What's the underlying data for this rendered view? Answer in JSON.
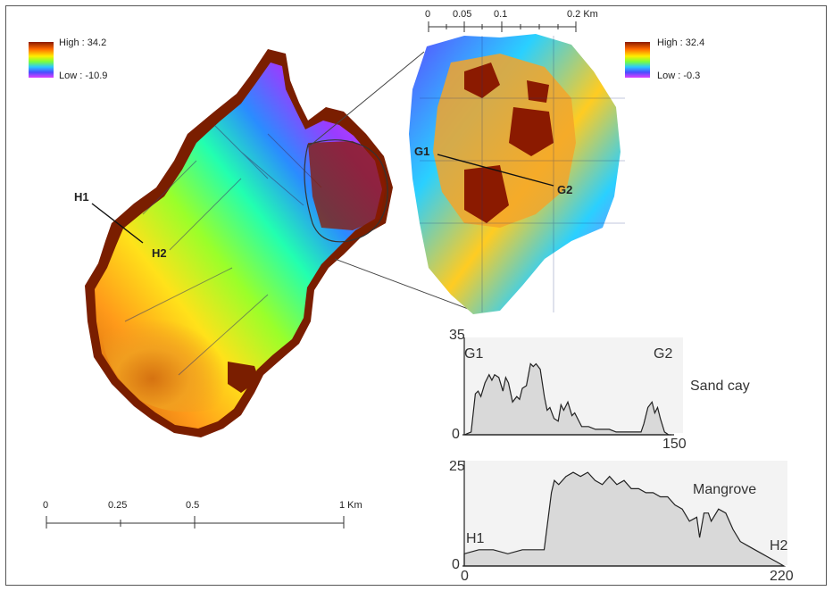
{
  "legend_left": {
    "high": "High : 34.2",
    "low": "Low : -10.9"
  },
  "legend_right": {
    "high": "High : 32.4",
    "low": "Low : -0.3"
  },
  "scalebar_top": {
    "ticks": [
      "0",
      "0.05",
      "0.1",
      "0.2 Km"
    ]
  },
  "scalebar_bottom": {
    "ticks": [
      "0",
      "0.25",
      "0.5",
      "1 Km"
    ]
  },
  "profile_points": {
    "h1": "H1",
    "h2": "H2",
    "g1": "G1",
    "g2": "G2"
  },
  "colors": {
    "ramp_high": "#8b1a00",
    "ramp_mid": "#7cff3a",
    "ramp_low": "#e040ff",
    "profile_fill": "#d9d9d9"
  },
  "chart_data": [
    {
      "type": "area",
      "title": "Sand cay",
      "x_ticks": [
        "0",
        "150"
      ],
      "y_ticks": [
        "0",
        "35"
      ],
      "start_label": "G1",
      "end_label": "G2",
      "xlim": [
        0,
        150
      ],
      "ylim": [
        0,
        35
      ],
      "x": [
        0,
        5,
        8,
        10,
        12,
        15,
        18,
        20,
        22,
        25,
        28,
        30,
        32,
        35,
        38,
        40,
        42,
        45,
        48,
        50,
        52,
        55,
        58,
        60,
        62,
        65,
        68,
        70,
        72,
        75,
        78,
        80,
        85,
        90,
        95,
        100,
        105,
        110,
        115,
        120,
        125,
        128,
        130,
        133,
        136,
        138,
        140,
        142,
        145,
        148,
        150
      ],
      "y": [
        0,
        1,
        15,
        16,
        14,
        19,
        22,
        20,
        22,
        21,
        16,
        21,
        19,
        12,
        14,
        13,
        17,
        18,
        26,
        25,
        26,
        24,
        14,
        9,
        10,
        6,
        5,
        11,
        9,
        12,
        7,
        8,
        3,
        3,
        2,
        2,
        2,
        1,
        1,
        1,
        1,
        1,
        4,
        10,
        12,
        8,
        10,
        6,
        1,
        0,
        0
      ]
    },
    {
      "type": "area",
      "title": "Mangrove",
      "x_ticks": [
        "0",
        "220"
      ],
      "y_ticks": [
        "0",
        "25"
      ],
      "start_label": "H1",
      "end_label": "H2",
      "xlim": [
        0,
        220
      ],
      "ylim": [
        0,
        25
      ],
      "x": [
        0,
        10,
        20,
        30,
        40,
        50,
        55,
        60,
        62,
        65,
        70,
        75,
        80,
        85,
        90,
        95,
        100,
        105,
        110,
        115,
        120,
        125,
        130,
        135,
        140,
        145,
        150,
        155,
        160,
        162,
        165,
        168,
        170,
        175,
        180,
        185,
        190,
        195,
        200,
        205,
        210,
        215,
        220
      ],
      "y": [
        3,
        4,
        4,
        3,
        4,
        4,
        4,
        18,
        21,
        20,
        22,
        23,
        22,
        23,
        21,
        20,
        22,
        20,
        21,
        19,
        19,
        18,
        18,
        17,
        17,
        15,
        14,
        11,
        12,
        7,
        13,
        13,
        11,
        14,
        13,
        9,
        6,
        5,
        4,
        3,
        2,
        1,
        0
      ]
    }
  ]
}
